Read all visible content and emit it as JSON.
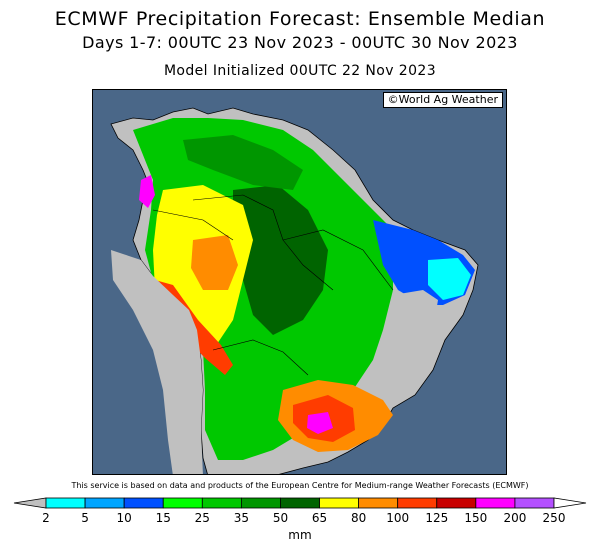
{
  "header": {
    "title": "ECMWF Precipitation Forecast: Ensemble Median",
    "period": "Days 1-7: 00UTC 23 Nov 2023 - 00UTC 30 Nov 2023",
    "init": "Model Initialized 00UTC 22 Nov 2023"
  },
  "map": {
    "credit": "©World Ag Weather",
    "ocean_color": "#4a6788"
  },
  "footer": {
    "note": "This service is based on data and products of the European Centre for Medium-range Weather Forecasts (ECMWF)"
  },
  "legend": {
    "unit": "mm",
    "ticks": [
      "2",
      "5",
      "10",
      "15",
      "25",
      "35",
      "50",
      "65",
      "80",
      "100",
      "125",
      "150",
      "200",
      "250"
    ],
    "below_min_color": "#c0c0c0",
    "above_max_color": "#ffffff",
    "colors": [
      "#00ffff",
      "#00a5ff",
      "#0050ff",
      "#00ff00",
      "#00c800",
      "#009600",
      "#006400",
      "#ffff00",
      "#ff8c00",
      "#ff3c00",
      "#c80000",
      "#ff00ff",
      "#b450ff"
    ]
  }
}
